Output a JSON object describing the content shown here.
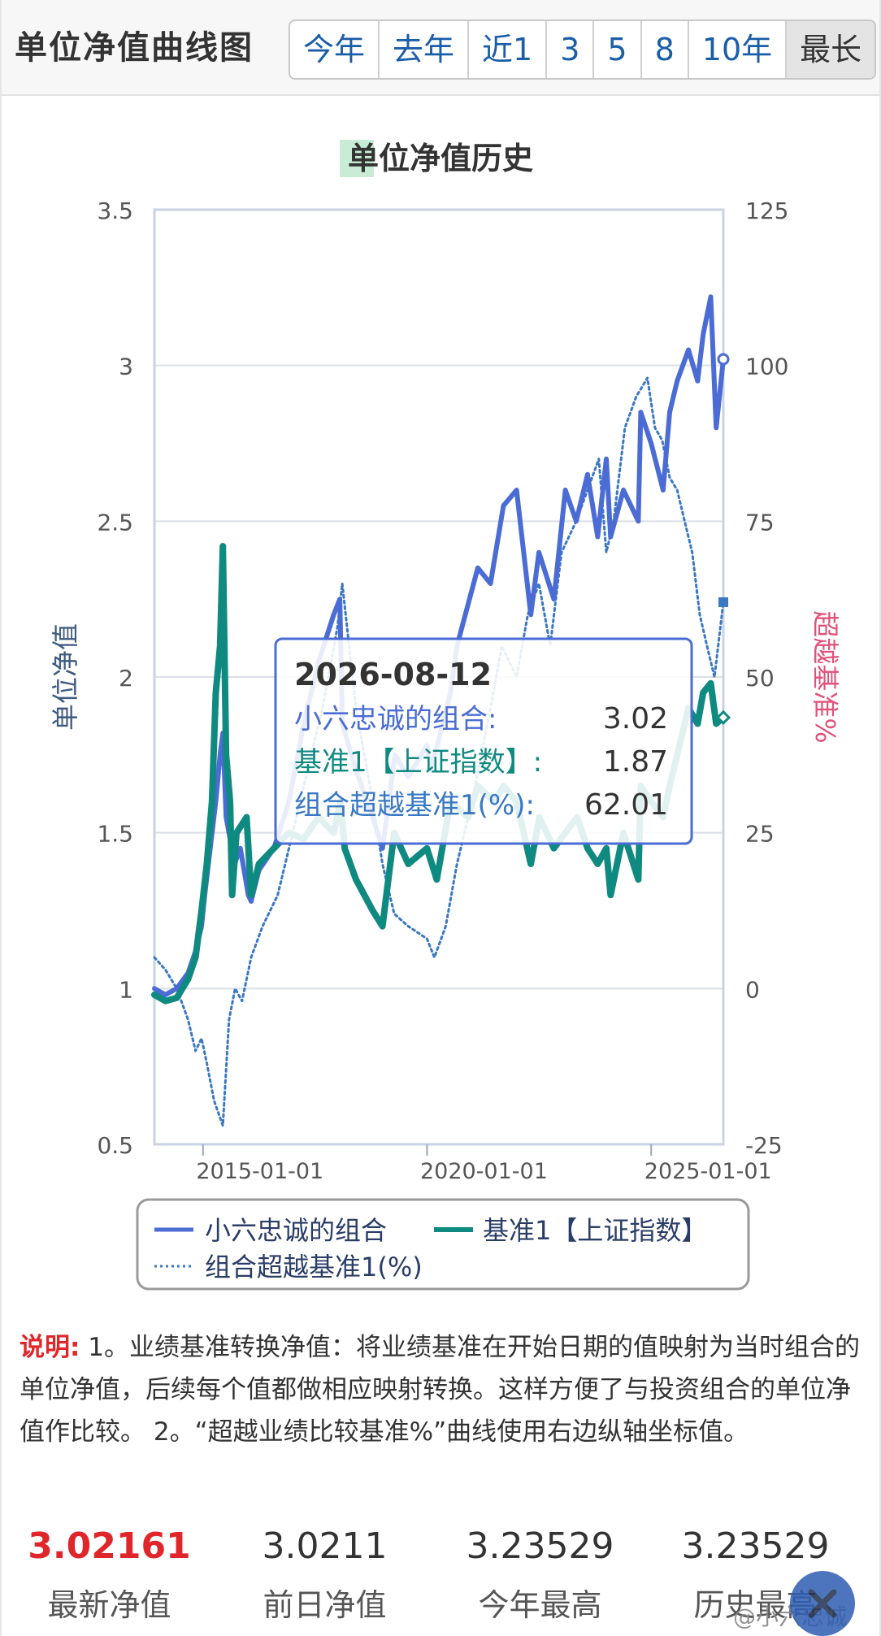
{
  "header": {
    "title": "单位净值曲线图",
    "ranges": [
      {
        "label": "今年",
        "active": false
      },
      {
        "label": "去年",
        "active": false
      },
      {
        "label": "近1",
        "active": false
      },
      {
        "label": "3",
        "active": false
      },
      {
        "label": "5",
        "active": false
      },
      {
        "label": "8",
        "active": false
      },
      {
        "label": "10年",
        "active": false
      },
      {
        "label": "最长",
        "active": true
      }
    ]
  },
  "colors": {
    "portfolio": "#4a6cd4",
    "benchmark": "#0f8a80",
    "excess": "#3a78c2",
    "right_axis_title": "#e0527a",
    "left_axis_title": "#3d5a80",
    "accent_red": "#e0262b"
  },
  "chart_data": {
    "type": "line",
    "title": "单位净值历史",
    "ylabel": "单位净值",
    "ylabel_right": "超越基准%",
    "xlim": [
      "2013-12-01",
      "2026-08-12"
    ],
    "ylim": [
      0.5,
      3.5
    ],
    "ylim_right": [
      -25,
      125
    ],
    "x_ticks": [
      "2015-01-01",
      "2020-01-01",
      "2025-01-01"
    ],
    "y_ticks": [
      "0.5",
      "1",
      "1.5",
      "2",
      "2.5",
      "3",
      "3.5"
    ],
    "y_ticks_right": [
      "-25",
      "0",
      "25",
      "50",
      "75",
      "100",
      "125"
    ],
    "grid": true,
    "legend_position": "bottom",
    "series": [
      {
        "name": "小六忠诚的组合",
        "axis": "left",
        "style": "solid",
        "x": [
          "2013-12-01",
          "2014-03-01",
          "2014-06-01",
          "2014-09-01",
          "2014-11-01",
          "2014-12-20",
          "2015-01-15",
          "2015-03-01",
          "2015-04-15",
          "2015-05-20",
          "2015-06-12",
          "2015-07-08",
          "2015-08-10",
          "2015-09-15",
          "2015-11-01",
          "2016-01-05",
          "2016-01-28",
          "2016-04-01",
          "2016-08-01",
          "2016-12-01",
          "2017-04-01",
          "2017-08-01",
          "2017-12-01",
          "2018-01-20",
          "2018-02-10",
          "2018-06-01",
          "2018-10-15",
          "2019-01-03",
          "2019-04-15",
          "2019-08-01",
          "2019-12-31",
          "2020-02-03",
          "2020-07-10",
          "2020-09-01",
          "2021-02-18",
          "2021-06-01",
          "2021-09-15",
          "2021-12-31",
          "2022-04-26",
          "2022-07-01",
          "2022-10-31",
          "2023-02-01",
          "2023-05-01",
          "2023-08-01",
          "2023-10-23",
          "2024-01-01",
          "2024-02-05",
          "2024-05-20",
          "2024-09-18",
          "2024-10-08",
          "2025-01-01",
          "2025-04-08",
          "2025-06-01",
          "2025-08-01",
          "2025-11-01",
          "2026-01-15",
          "2026-03-01",
          "2026-05-01",
          "2026-06-15",
          "2026-08-12"
        ],
        "y": [
          1.0,
          0.98,
          1.0,
          1.05,
          1.12,
          1.2,
          1.3,
          1.45,
          1.6,
          1.75,
          1.82,
          1.55,
          1.48,
          1.4,
          1.45,
          1.3,
          1.28,
          1.38,
          1.45,
          1.6,
          1.85,
          2.05,
          2.2,
          2.25,
          1.85,
          1.7,
          1.55,
          1.45,
          1.75,
          1.68,
          1.78,
          1.7,
          1.95,
          2.1,
          2.35,
          2.3,
          2.55,
          2.6,
          2.2,
          2.4,
          2.25,
          2.6,
          2.5,
          2.65,
          2.45,
          2.7,
          2.45,
          2.6,
          2.5,
          2.85,
          2.75,
          2.6,
          2.85,
          2.95,
          3.05,
          2.95,
          3.1,
          3.22,
          2.8,
          3.02
        ]
      },
      {
        "name": "基准1【上证指数】",
        "axis": "left",
        "style": "solid",
        "x": [
          "2013-12-01",
          "2014-03-01",
          "2014-06-01",
          "2014-09-01",
          "2014-11-01",
          "2014-12-20",
          "2015-02-01",
          "2015-03-15",
          "2015-04-15",
          "2015-05-20",
          "2015-06-12",
          "2015-07-08",
          "2015-08-10",
          "2015-08-26",
          "2015-10-01",
          "2015-12-22",
          "2016-01-28",
          "2016-04-01",
          "2016-08-01",
          "2016-12-01",
          "2017-04-01",
          "2017-08-01",
          "2017-12-01",
          "2018-01-26",
          "2018-03-01",
          "2018-06-01",
          "2018-10-15",
          "2019-01-03",
          "2019-04-08",
          "2019-08-01",
          "2019-12-31",
          "2020-03-20",
          "2020-07-10",
          "2020-12-01",
          "2021-02-18",
          "2021-07-01",
          "2021-09-15",
          "2021-12-31",
          "2022-04-26",
          "2022-07-05",
          "2022-10-31",
          "2023-02-01",
          "2023-05-09",
          "2023-08-01",
          "2023-10-23",
          "2024-01-01",
          "2024-02-05",
          "2024-05-20",
          "2024-09-18",
          "2024-10-08",
          "2025-01-01",
          "2025-04-08",
          "2025-06-01",
          "2025-08-01",
          "2025-11-01",
          "2026-01-15",
          "2026-03-01",
          "2026-05-01",
          "2026-06-15",
          "2026-08-12"
        ],
        "y": [
          0.98,
          0.96,
          0.97,
          1.03,
          1.1,
          1.25,
          1.4,
          1.6,
          1.95,
          2.1,
          2.42,
          1.75,
          1.6,
          1.3,
          1.5,
          1.55,
          1.3,
          1.4,
          1.45,
          1.5,
          1.48,
          1.55,
          1.5,
          1.6,
          1.45,
          1.35,
          1.25,
          1.2,
          1.5,
          1.4,
          1.45,
          1.35,
          1.6,
          1.55,
          1.65,
          1.6,
          1.65,
          1.6,
          1.4,
          1.55,
          1.45,
          1.5,
          1.55,
          1.45,
          1.4,
          1.45,
          1.3,
          1.5,
          1.35,
          1.65,
          1.6,
          1.55,
          1.65,
          1.75,
          1.9,
          1.85,
          1.95,
          1.98,
          1.85,
          1.87
        ]
      },
      {
        "name": "组合超越基准1(%)",
        "axis": "right",
        "style": "dotted",
        "x": [
          "2013-12-01",
          "2014-03-01",
          "2014-06-01",
          "2014-09-01",
          "2014-11-01",
          "2014-12-20",
          "2015-02-01",
          "2015-04-01",
          "2015-06-12",
          "2015-08-01",
          "2015-09-20",
          "2015-11-15",
          "2016-01-28",
          "2016-05-01",
          "2016-09-01",
          "2017-01-01",
          "2017-05-01",
          "2017-09-01",
          "2018-01-01",
          "2018-02-09",
          "2018-06-01",
          "2018-10-15",
          "2019-01-03",
          "2019-04-08",
          "2019-08-01",
          "2019-12-31",
          "2020-03-01",
          "2020-06-01",
          "2020-09-01",
          "2021-01-01",
          "2021-06-01",
          "2021-09-01",
          "2021-12-31",
          "2022-04-01",
          "2022-07-01",
          "2022-10-01",
          "2023-01-01",
          "2023-05-01",
          "2023-08-01",
          "2023-11-01",
          "2024-01-01",
          "2024-03-01",
          "2024-06-01",
          "2024-09-01",
          "2024-12-01",
          "2025-02-01",
          "2025-04-01",
          "2025-06-01",
          "2025-08-01",
          "2025-10-01",
          "2025-12-01",
          "2026-02-01",
          "2026-04-01",
          "2026-06-01",
          "2026-08-12"
        ],
        "y": [
          5,
          3,
          0,
          -5,
          -10,
          -8,
          -12,
          -18,
          -22,
          -5,
          0,
          -2,
          5,
          10,
          15,
          25,
          35,
          45,
          58,
          65,
          45,
          30,
          20,
          12,
          10,
          8,
          5,
          10,
          20,
          30,
          45,
          55,
          50,
          60,
          65,
          55,
          70,
          75,
          80,
          85,
          70,
          75,
          90,
          95,
          98,
          90,
          88,
          82,
          80,
          75,
          70,
          60,
          55,
          50,
          62.01
        ]
      }
    ],
    "tooltip": {
      "date": "2026-08-12",
      "rows": [
        {
          "label": "小六忠诚的组合:",
          "value": "3.02"
        },
        {
          "label": "基准1【上证指数】:",
          "value": "1.87"
        },
        {
          "label": "组合超越基准1(%):",
          "value": "62.01"
        }
      ]
    }
  },
  "description": {
    "label": "说明:",
    "text": " 1。业绩基准转换净值：将业绩基准在开始日期的值映射为当时组合的单位净值，后续每个值都做相应映射转换。这样方便了与投资组合的单位净值作比较。 2。“超越业绩比较基准%”曲线使用右边纵轴坐标值。"
  },
  "stats": [
    {
      "value": "3.02161",
      "label": "最新净值",
      "highlight": true
    },
    {
      "value": "3.0211",
      "label": "前日净值",
      "highlight": false
    },
    {
      "value": "3.23529",
      "label": "今年最高",
      "highlight": false
    },
    {
      "value": "3.23529",
      "label": "历史最高",
      "highlight": false
    }
  ],
  "watermark": "@小六忠诚",
  "close_button": {
    "icon": "close-icon"
  }
}
